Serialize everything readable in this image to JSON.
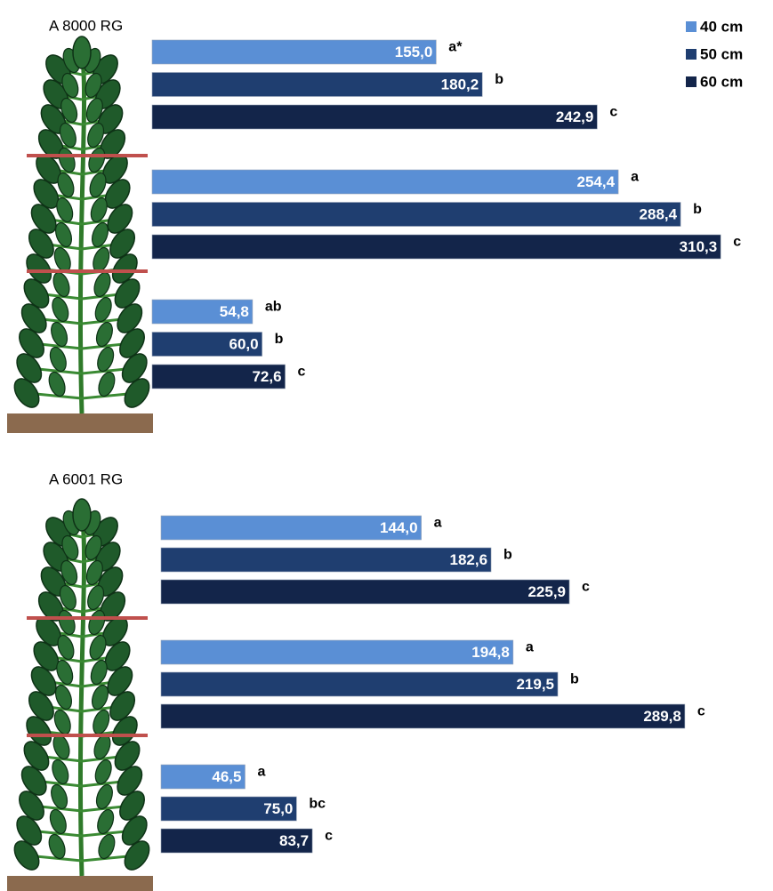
{
  "chart_data": [
    {
      "type": "bar",
      "orientation": "horizontal",
      "title": "A 8000 RG",
      "categories": [
        null,
        null,
        null
      ],
      "series": [
        {
          "name": "40 cm",
          "color": "#5a8fd5",
          "values": [
            155.0,
            254.4,
            54.8
          ],
          "value_labels": [
            "155,0",
            "254,4",
            "54,8"
          ],
          "letters": [
            "a*",
            "a",
            "ab"
          ]
        },
        {
          "name": "50 cm",
          "color": "#1f3e70",
          "values": [
            180.2,
            288.4,
            60.0
          ],
          "value_labels": [
            "180,2",
            "288,4",
            "60,0"
          ],
          "letters": [
            "b",
            "b",
            "b"
          ]
        },
        {
          "name": "60 cm",
          "color": "#13254a",
          "values": [
            242.9,
            310.3,
            72.6
          ],
          "value_labels": [
            "242,9",
            "310,3",
            "72,6"
          ],
          "letters": [
            "c",
            "c",
            "c"
          ]
        }
      ]
    },
    {
      "type": "bar",
      "orientation": "horizontal",
      "title": "A 6001 RG",
      "categories": [
        null,
        null,
        null
      ],
      "series": [
        {
          "color": "#5a8fd5",
          "values": [
            144.0,
            194.8,
            46.5
          ],
          "value_labels": [
            "144,0",
            "194,8",
            "46,5"
          ],
          "letters": [
            "a",
            "a",
            "a"
          ]
        },
        {
          "color": "#1f3e70",
          "values": [
            182.6,
            219.5,
            75.0
          ],
          "value_labels": [
            "182,6",
            "219,5",
            "75,0"
          ],
          "letters": [
            "b",
            "b",
            "bc"
          ]
        },
        {
          "color": "#13254a",
          "values": [
            225.9,
            289.8,
            83.7
          ],
          "value_labels": [
            "225,9",
            "289,8",
            "83,7"
          ],
          "letters": [
            "c",
            "c",
            "c"
          ]
        }
      ]
    }
  ]
}
